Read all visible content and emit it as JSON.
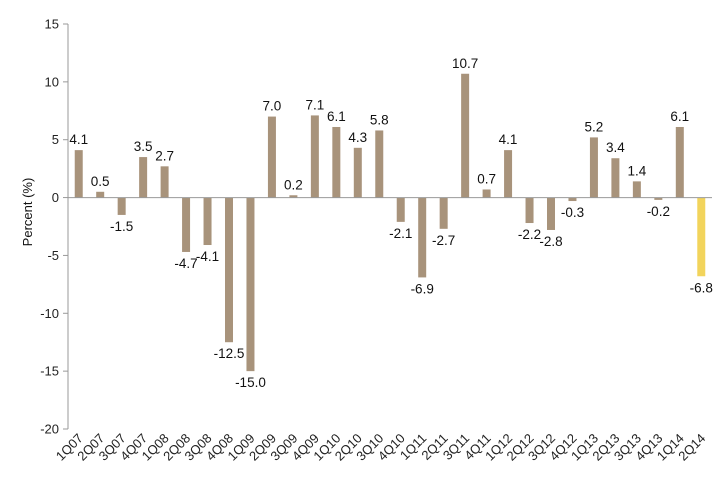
{
  "chart_data": {
    "type": "bar",
    "title": "",
    "xlabel": "",
    "ylabel": "Percent (%)",
    "ylim": [
      -20,
      15
    ],
    "yticks": [
      -20,
      -15,
      -10,
      -5,
      0,
      5,
      10,
      15
    ],
    "grid": false,
    "legend": "none",
    "categories": [
      "1Q07",
      "2Q07",
      "3Q07",
      "4Q07",
      "1Q08",
      "2Q08",
      "3Q08",
      "4Q08",
      "1Q09",
      "2Q09",
      "3Q09",
      "4Q09",
      "1Q10",
      "2Q10",
      "3Q10",
      "4Q10",
      "1Q11",
      "2Q11",
      "3Q11",
      "4Q11",
      "1Q12",
      "2Q12",
      "3Q12",
      "4Q12",
      "1Q13",
      "2Q13",
      "3Q13",
      "4Q13",
      "1Q14",
      "2Q14"
    ],
    "values": [
      4.1,
      0.5,
      -1.5,
      3.5,
      2.7,
      -4.7,
      -4.1,
      -12.5,
      -15.0,
      7.0,
      0.2,
      7.1,
      6.1,
      4.3,
      5.8,
      -2.1,
      -6.9,
      -2.7,
      10.7,
      0.7,
      4.1,
      -2.2,
      -2.8,
      -0.3,
      5.2,
      3.4,
      1.4,
      -0.2,
      6.1,
      -6.8
    ],
    "data_labels": [
      "4.1",
      "0.5",
      "-1.5",
      "3.5",
      "2.7",
      "-4.7",
      "-4.1",
      "-12.5",
      "-15.0",
      "7.0",
      "0.2",
      "7.1",
      "6.1",
      "4.3",
      "5.8",
      "-2.1",
      "-6.9",
      "-2.7",
      "10.7",
      "0.7",
      "4.1",
      "-2.2",
      "-2.8",
      "-0.3",
      "5.2",
      "3.4",
      "1.4",
      "-0.2",
      "6.1",
      "-6.8"
    ],
    "colors": {
      "default_bar": "#a8937b",
      "highlight_bar": "#f2d45c",
      "axis": "#999999"
    },
    "highlight_index": 29
  }
}
